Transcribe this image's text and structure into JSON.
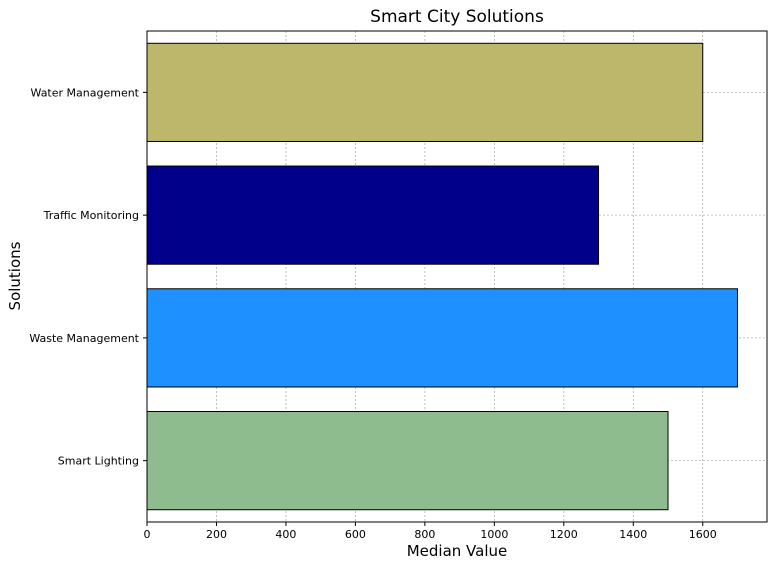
{
  "chart_data": {
    "type": "bar",
    "orientation": "horizontal",
    "title": "Smart City Solutions",
    "xlabel": "Median Value",
    "ylabel": "Solutions",
    "categories": [
      "Smart Lighting",
      "Waste Management",
      "Traffic Monitoring",
      "Water Management"
    ],
    "values": [
      1500,
      1700,
      1300,
      1600
    ],
    "colors": [
      "#8fbc8f",
      "#1e90ff",
      "#00008b",
      "#bdb76b"
    ],
    "xlim": [
      0,
      1785
    ],
    "xticks": [
      0,
      200,
      400,
      600,
      800,
      1000,
      1200,
      1400,
      1600
    ],
    "xtick_labels": [
      "0",
      "200",
      "400",
      "600",
      "800",
      "1000",
      "1200",
      "1400",
      "1600"
    ],
    "grid": true
  }
}
